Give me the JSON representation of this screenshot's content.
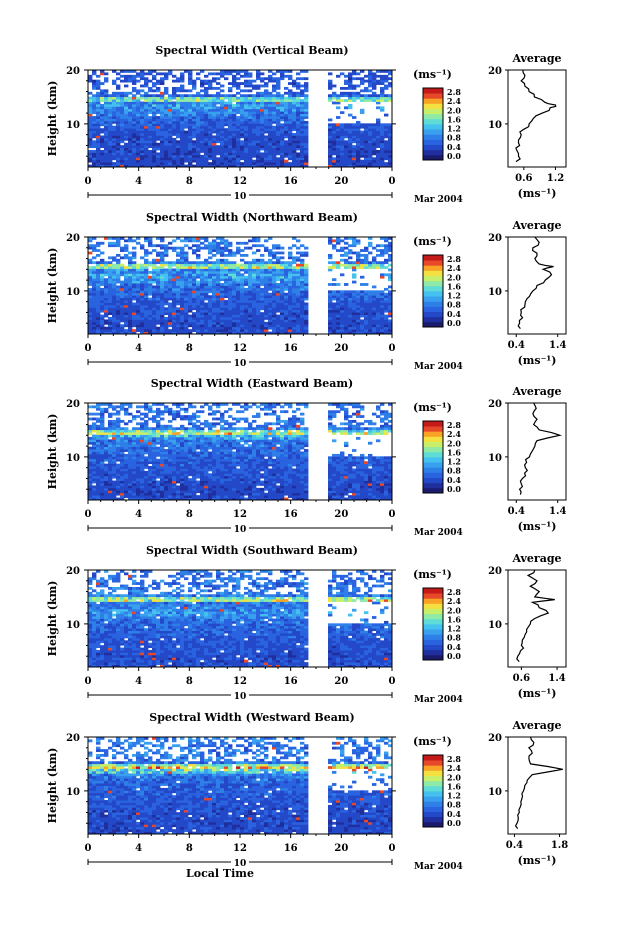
{
  "figure": {
    "xlabel": "Local Time",
    "date_label": "Mar 2004",
    "day_label": "10",
    "unit_label": "(ms⁻¹)",
    "avg_title": "Average",
    "colors": {
      "scale": [
        "#1b1b6e",
        "#1f2f9e",
        "#2348c8",
        "#2a63e0",
        "#2f7fe8",
        "#38a0ef",
        "#44c1ef",
        "#5fdcd6",
        "#8eeaa6",
        "#c8ef6a",
        "#f4e040",
        "#f8a326",
        "#e8482a",
        "#c41a1a"
      ],
      "background": "#ffffff",
      "axis": "#000000"
    }
  },
  "chart_data": [
    {
      "type": "heatmap",
      "title": "Spectral Width (Vertical Beam)",
      "ylabel": "Height (km)",
      "xlabel": "Local Time",
      "x_ticks": [
        "0",
        "4",
        "8",
        "12",
        "16",
        "20",
        "0"
      ],
      "xlim": [
        0,
        24
      ],
      "y_ticks": [
        "10",
        "20"
      ],
      "ylim": [
        2,
        20
      ],
      "data_gap": [
        17.5,
        18.8
      ],
      "colorbar": {
        "label": "(ms⁻¹)",
        "ticks": [
          "2.8",
          "2.4",
          "2.0",
          "1.6",
          "1.2",
          "0.8",
          "0.4",
          "0.0"
        ]
      },
      "average": {
        "title": "Average",
        "x_ticks": [
          "0.6",
          "1.2"
        ],
        "xlim": [
          0.3,
          1.4
        ],
        "profile": [
          [
            3,
            0.45
          ],
          [
            4,
            0.5
          ],
          [
            5,
            0.47
          ],
          [
            6,
            0.52
          ],
          [
            7,
            0.5
          ],
          [
            8,
            0.55
          ],
          [
            9,
            0.6
          ],
          [
            10,
            0.7
          ],
          [
            11,
            0.78
          ],
          [
            12,
            0.95
          ],
          [
            13,
            1.1
          ],
          [
            13.5,
            1.2
          ],
          [
            14,
            1.0
          ],
          [
            15,
            0.8
          ],
          [
            16,
            0.7
          ],
          [
            17,
            0.62
          ],
          [
            18,
            0.55
          ],
          [
            19,
            0.62
          ],
          [
            20,
            0.58
          ]
        ]
      }
    },
    {
      "type": "heatmap",
      "title": "Spectral Width (Northward Beam)",
      "ylabel": "Height (km)",
      "xlabel": "Local Time",
      "x_ticks": [
        "0",
        "4",
        "8",
        "12",
        "16",
        "20",
        "0"
      ],
      "xlim": [
        0,
        24
      ],
      "y_ticks": [
        "10",
        "20"
      ],
      "ylim": [
        2,
        20
      ],
      "data_gap": [
        17.5,
        18.8
      ],
      "colorbar": {
        "label": "(ms⁻¹)",
        "ticks": [
          "2.8",
          "2.4",
          "2.0",
          "1.6",
          "1.2",
          "0.8",
          "0.4",
          "0.0"
        ]
      },
      "average": {
        "title": "Average",
        "x_ticks": [
          "0.4",
          "1.4"
        ],
        "xlim": [
          0.2,
          1.6
        ],
        "profile": [
          [
            3,
            0.5
          ],
          [
            4,
            0.48
          ],
          [
            5,
            0.55
          ],
          [
            6,
            0.52
          ],
          [
            7,
            0.6
          ],
          [
            8,
            0.62
          ],
          [
            9,
            0.72
          ],
          [
            10,
            0.8
          ],
          [
            11,
            0.9
          ],
          [
            12,
            1.1
          ],
          [
            13,
            1.25
          ],
          [
            14,
            1.05
          ],
          [
            14.5,
            1.3
          ],
          [
            15,
            0.95
          ],
          [
            16,
            0.85
          ],
          [
            17,
            0.9
          ],
          [
            18,
            0.8
          ],
          [
            19,
            0.95
          ],
          [
            20,
            0.85
          ]
        ]
      }
    },
    {
      "type": "heatmap",
      "title": "Spectral Width (Eastward Beam)",
      "ylabel": "Height (km)",
      "xlabel": "Local Time",
      "x_ticks": [
        "0",
        "4",
        "8",
        "12",
        "16",
        "20",
        "0"
      ],
      "xlim": [
        0,
        24
      ],
      "y_ticks": [
        "10",
        "20"
      ],
      "ylim": [
        2,
        20
      ],
      "data_gap": [
        17.5,
        18.8
      ],
      "colorbar": {
        "label": "(ms⁻¹)",
        "ticks": [
          "2.8",
          "2.4",
          "2.0",
          "1.6",
          "1.2",
          "0.8",
          "0.4",
          "0.0"
        ]
      },
      "average": {
        "title": "Average",
        "x_ticks": [
          "0.4",
          "1.4"
        ],
        "xlim": [
          0.2,
          1.6
        ],
        "profile": [
          [
            3,
            0.5
          ],
          [
            4,
            0.48
          ],
          [
            5,
            0.52
          ],
          [
            6,
            0.55
          ],
          [
            7,
            0.6
          ],
          [
            8,
            0.62
          ],
          [
            9,
            0.65
          ],
          [
            10,
            0.72
          ],
          [
            11,
            0.78
          ],
          [
            12,
            0.85
          ],
          [
            13,
            0.9
          ],
          [
            14,
            1.45
          ],
          [
            15,
            0.95
          ],
          [
            16,
            0.82
          ],
          [
            17,
            0.9
          ],
          [
            18,
            0.8
          ],
          [
            19,
            0.88
          ],
          [
            20,
            0.82
          ]
        ]
      }
    },
    {
      "type": "heatmap",
      "title": "Spectral Width (Southward Beam)",
      "ylabel": "Height (km)",
      "xlabel": "Local Time",
      "x_ticks": [
        "0",
        "4",
        "8",
        "12",
        "16",
        "20",
        "0"
      ],
      "xlim": [
        0,
        24
      ],
      "y_ticks": [
        "10",
        "20"
      ],
      "ylim": [
        2,
        20
      ],
      "data_gap": [
        17.5,
        18.8
      ],
      "colorbar": {
        "label": "(ms⁻¹)",
        "ticks": [
          "2.8",
          "2.4",
          "2.0",
          "1.6",
          "1.2",
          "0.8",
          "0.4",
          "0.0"
        ]
      },
      "average": {
        "title": "Average",
        "x_ticks": [
          "0.6",
          "1.4"
        ],
        "xlim": [
          0.3,
          1.6
        ],
        "profile": [
          [
            3,
            0.55
          ],
          [
            4,
            0.52
          ],
          [
            5,
            0.58
          ],
          [
            6,
            0.6
          ],
          [
            7,
            0.62
          ],
          [
            8,
            0.68
          ],
          [
            9,
            0.72
          ],
          [
            10,
            0.8
          ],
          [
            11,
            0.9
          ],
          [
            12,
            1.2
          ],
          [
            13,
            1.0
          ],
          [
            14,
            0.85
          ],
          [
            14.5,
            1.35
          ],
          [
            15,
            0.9
          ],
          [
            16,
            1.0
          ],
          [
            17,
            0.8
          ],
          [
            18,
            0.95
          ],
          [
            19,
            0.75
          ],
          [
            20,
            0.9
          ]
        ]
      }
    },
    {
      "type": "heatmap",
      "title": "Spectral Width (Westward Beam)",
      "ylabel": "Height (km)",
      "xlabel": "Local Time",
      "x_ticks": [
        "0",
        "4",
        "8",
        "12",
        "16",
        "20",
        "0"
      ],
      "xlim": [
        0,
        24
      ],
      "y_ticks": [
        "10",
        "20"
      ],
      "ylim": [
        2,
        20
      ],
      "data_gap": [
        17.5,
        18.8
      ],
      "colorbar": {
        "label": "(ms⁻¹)",
        "ticks": [
          "2.8",
          "2.4",
          "2.0",
          "1.6",
          "1.2",
          "0.8",
          "0.4",
          "0.0"
        ]
      },
      "average": {
        "title": "Average",
        "x_ticks": [
          "0.4",
          "1.8"
        ],
        "xlim": [
          0.2,
          2.0
        ],
        "profile": [
          [
            3,
            0.5
          ],
          [
            4,
            0.48
          ],
          [
            5,
            0.52
          ],
          [
            6,
            0.55
          ],
          [
            7,
            0.58
          ],
          [
            8,
            0.6
          ],
          [
            9,
            0.65
          ],
          [
            10,
            0.68
          ],
          [
            11,
            0.72
          ],
          [
            12,
            0.8
          ],
          [
            13,
            0.95
          ],
          [
            14,
            1.9
          ],
          [
            15,
            0.9
          ],
          [
            16,
            0.85
          ],
          [
            17,
            0.95
          ],
          [
            18,
            0.85
          ],
          [
            19,
            1.0
          ],
          [
            20,
            0.9
          ]
        ]
      }
    }
  ]
}
